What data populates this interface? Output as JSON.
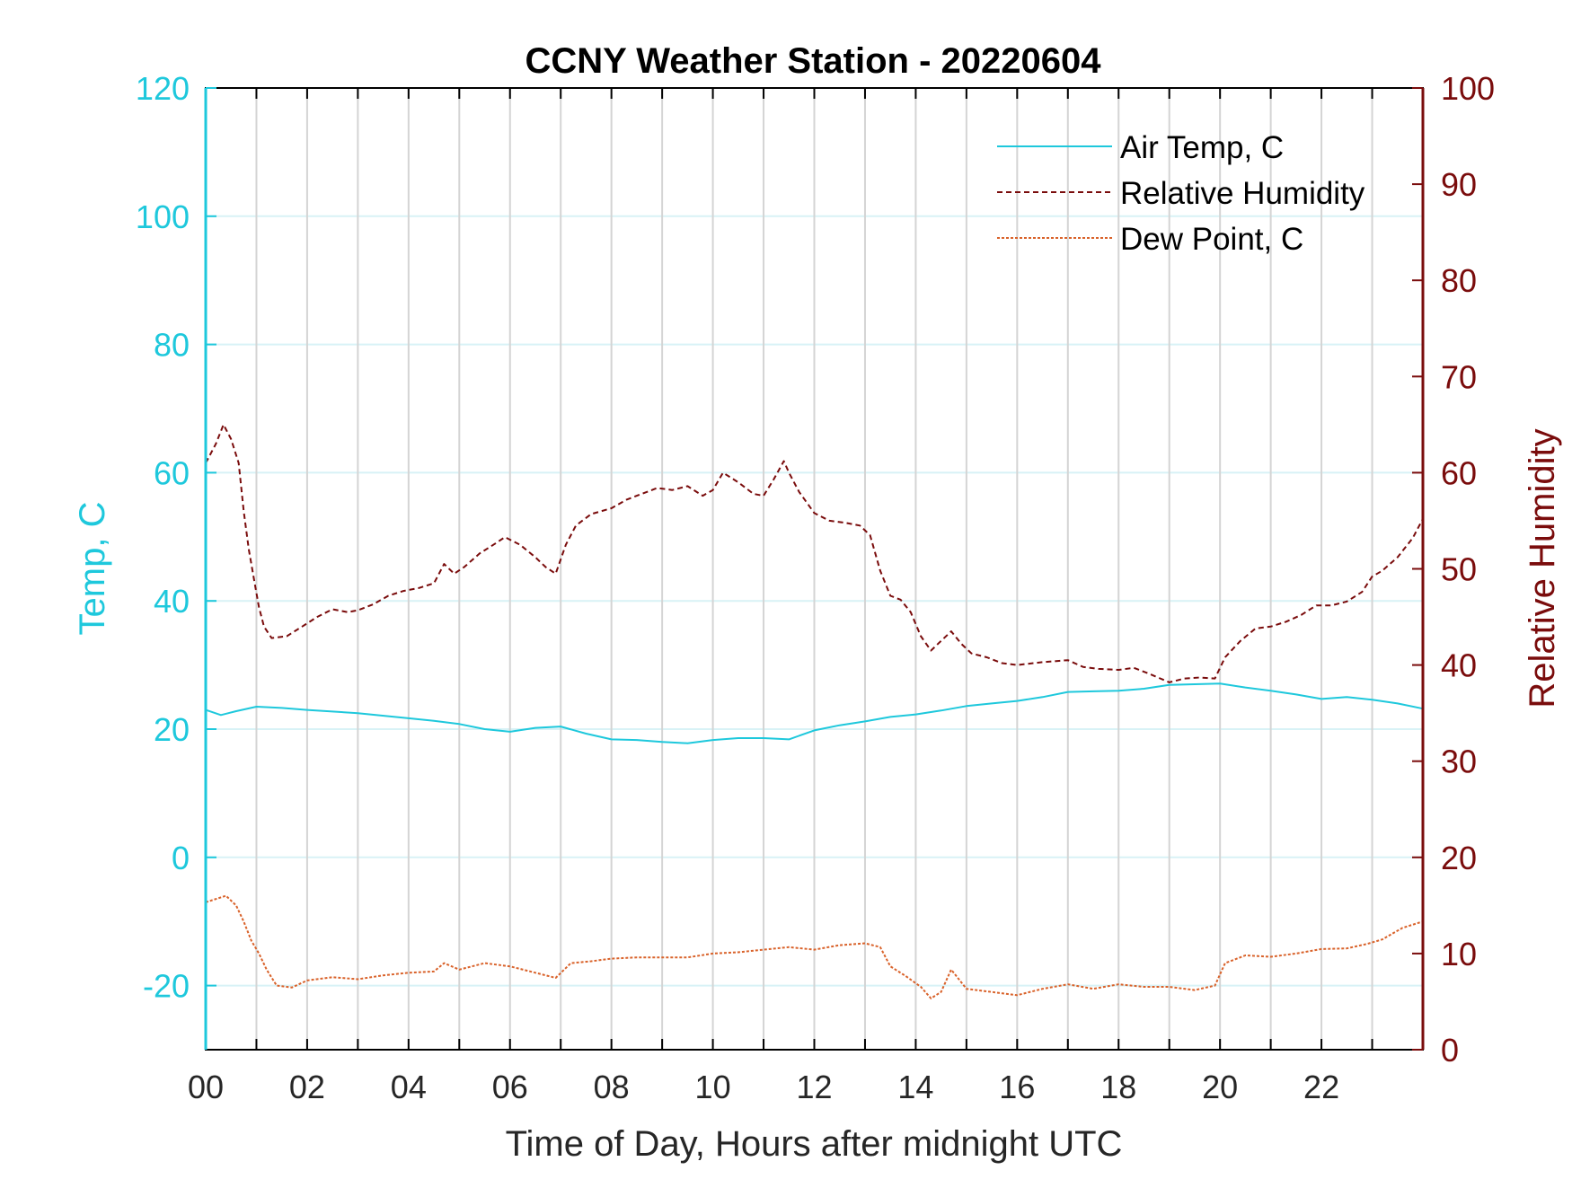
{
  "chart_data": {
    "type": "line",
    "title": "CCNY Weather Station - 20220604",
    "xlabel": "Time of Day, Hours after midnight UTC",
    "ylabel_left": "Temp, C",
    "ylabel_right": "Relative Humidity",
    "xlim": [
      0,
      24
    ],
    "ylim_left": [
      -30,
      120
    ],
    "ylim_right": [
      0,
      100
    ],
    "x_ticks": [
      0,
      2,
      4,
      6,
      8,
      10,
      12,
      14,
      16,
      18,
      20,
      22
    ],
    "x_tick_labels": [
      "00",
      "02",
      "04",
      "06",
      "08",
      "10",
      "12",
      "14",
      "16",
      "18",
      "20",
      "22"
    ],
    "y_left_ticks": [
      -20,
      0,
      20,
      40,
      60,
      80,
      100,
      120
    ],
    "y_left_tick_labels": [
      "-20",
      "0",
      "20",
      "40",
      "60",
      "80",
      "100",
      "120"
    ],
    "y_right_ticks": [
      0,
      10,
      20,
      30,
      40,
      50,
      60,
      70,
      80,
      90,
      100
    ],
    "y_right_tick_labels": [
      "0",
      "10",
      "20",
      "30",
      "40",
      "50",
      "60",
      "70",
      "80",
      "90",
      "100"
    ],
    "grid": true,
    "legend_position": "top-right",
    "colors": {
      "temp": "#1ec8dc",
      "humidity": "#7a0c0c",
      "dewpoint": "#d9622a",
      "axis_left": "#1ec8dc",
      "axis_right": "#7a0c0c",
      "grid_vertical": "#d4d4d4",
      "grid_horizontal": "#d8f2f6"
    },
    "series": [
      {
        "name": "Air Temp, C",
        "axis": "left",
        "style": "solid",
        "points": [
          [
            0,
            23
          ],
          [
            0.3,
            22.2
          ],
          [
            0.6,
            22.8
          ],
          [
            1.0,
            23.5
          ],
          [
            1.5,
            23.3
          ],
          [
            2,
            23.0
          ],
          [
            3,
            22.5
          ],
          [
            4,
            21.7
          ],
          [
            4.5,
            21.3
          ],
          [
            5,
            20.8
          ],
          [
            5.5,
            20.0
          ],
          [
            6,
            19.6
          ],
          [
            6.5,
            20.2
          ],
          [
            7,
            20.4
          ],
          [
            7.5,
            19.3
          ],
          [
            8,
            18.4
          ],
          [
            8.5,
            18.3
          ],
          [
            9,
            18.0
          ],
          [
            9.5,
            17.8
          ],
          [
            10,
            18.3
          ],
          [
            10.5,
            18.6
          ],
          [
            11,
            18.6
          ],
          [
            11.5,
            18.4
          ],
          [
            12,
            19.8
          ],
          [
            12.5,
            20.6
          ],
          [
            13,
            21.2
          ],
          [
            13.5,
            21.9
          ],
          [
            14,
            22.3
          ],
          [
            14.5,
            22.9
          ],
          [
            15,
            23.6
          ],
          [
            15.5,
            24.0
          ],
          [
            16,
            24.4
          ],
          [
            16.5,
            25.0
          ],
          [
            17,
            25.8
          ],
          [
            17.5,
            25.9
          ],
          [
            18,
            26.0
          ],
          [
            18.5,
            26.3
          ],
          [
            19,
            26.9
          ],
          [
            19.5,
            27.0
          ],
          [
            20,
            27.1
          ],
          [
            20.5,
            26.5
          ],
          [
            21,
            26.0
          ],
          [
            21.5,
            25.4
          ],
          [
            22,
            24.7
          ],
          [
            22.5,
            25.0
          ],
          [
            23,
            24.6
          ],
          [
            23.5,
            24.0
          ],
          [
            24,
            23.2
          ]
        ]
      },
      {
        "name": "Relative Humidity",
        "axis": "right",
        "style": "dashed",
        "points": [
          [
            0,
            61
          ],
          [
            0.2,
            63
          ],
          [
            0.35,
            65
          ],
          [
            0.5,
            63.5
          ],
          [
            0.65,
            61
          ],
          [
            0.75,
            56
          ],
          [
            0.85,
            52
          ],
          [
            0.95,
            49
          ],
          [
            1.05,
            46
          ],
          [
            1.15,
            44
          ],
          [
            1.3,
            42.8
          ],
          [
            1.6,
            43
          ],
          [
            1.9,
            44
          ],
          [
            2.2,
            45
          ],
          [
            2.5,
            45.8
          ],
          [
            2.8,
            45.5
          ],
          [
            3.0,
            45.7
          ],
          [
            3.3,
            46.3
          ],
          [
            3.6,
            47.2
          ],
          [
            3.9,
            47.7
          ],
          [
            4.2,
            48.0
          ],
          [
            4.5,
            48.5
          ],
          [
            4.7,
            50.5
          ],
          [
            4.9,
            49.5
          ],
          [
            5.1,
            50.2
          ],
          [
            5.4,
            51.6
          ],
          [
            5.7,
            52.6
          ],
          [
            5.9,
            53.3
          ],
          [
            6.2,
            52.5
          ],
          [
            6.5,
            51.2
          ],
          [
            6.7,
            50.2
          ],
          [
            6.9,
            49.5
          ],
          [
            7.1,
            52.5
          ],
          [
            7.3,
            54.5
          ],
          [
            7.6,
            55.7
          ],
          [
            8.0,
            56.3
          ],
          [
            8.3,
            57.2
          ],
          [
            8.6,
            57.8
          ],
          [
            8.9,
            58.4
          ],
          [
            9.2,
            58.2
          ],
          [
            9.5,
            58.6
          ],
          [
            9.8,
            57.6
          ],
          [
            10.0,
            58.2
          ],
          [
            10.2,
            60.0
          ],
          [
            10.5,
            59.0
          ],
          [
            10.8,
            57.8
          ],
          [
            11.0,
            57.6
          ],
          [
            11.2,
            59.3
          ],
          [
            11.4,
            61.2
          ],
          [
            11.5,
            60.0
          ],
          [
            11.7,
            58.0
          ],
          [
            12.0,
            55.8
          ],
          [
            12.3,
            55.0
          ],
          [
            12.6,
            54.8
          ],
          [
            12.9,
            54.5
          ],
          [
            13.1,
            53.5
          ],
          [
            13.3,
            49.8
          ],
          [
            13.5,
            47.2
          ],
          [
            13.7,
            46.8
          ],
          [
            13.9,
            45.5
          ],
          [
            14.1,
            43.0
          ],
          [
            14.3,
            41.5
          ],
          [
            14.5,
            42.5
          ],
          [
            14.7,
            43.5
          ],
          [
            14.9,
            42.2
          ],
          [
            15.1,
            41.2
          ],
          [
            15.4,
            40.8
          ],
          [
            15.7,
            40.2
          ],
          [
            16.0,
            40.0
          ],
          [
            16.5,
            40.3
          ],
          [
            17.0,
            40.5
          ],
          [
            17.3,
            39.8
          ],
          [
            17.6,
            39.6
          ],
          [
            18.0,
            39.5
          ],
          [
            18.3,
            39.7
          ],
          [
            18.6,
            39.1
          ],
          [
            19.0,
            38.2
          ],
          [
            19.3,
            38.6
          ],
          [
            19.6,
            38.7
          ],
          [
            19.9,
            38.6
          ],
          [
            20.1,
            40.8
          ],
          [
            20.4,
            42.5
          ],
          [
            20.7,
            43.8
          ],
          [
            21.0,
            44.0
          ],
          [
            21.3,
            44.5
          ],
          [
            21.6,
            45.2
          ],
          [
            21.9,
            46.2
          ],
          [
            22.2,
            46.2
          ],
          [
            22.5,
            46.6
          ],
          [
            22.8,
            47.6
          ],
          [
            23.0,
            49.2
          ],
          [
            23.2,
            49.8
          ],
          [
            23.5,
            51.2
          ],
          [
            23.8,
            53.2
          ],
          [
            24.0,
            55.2
          ]
        ]
      },
      {
        "name": "Dew Point, C",
        "axis": "left",
        "style": "dotted",
        "points": [
          [
            0,
            -7
          ],
          [
            0.2,
            -6.5
          ],
          [
            0.4,
            -6
          ],
          [
            0.6,
            -7.5
          ],
          [
            0.75,
            -10
          ],
          [
            0.9,
            -13
          ],
          [
            1.05,
            -15
          ],
          [
            1.2,
            -17.5
          ],
          [
            1.4,
            -20
          ],
          [
            1.7,
            -20.3
          ],
          [
            2.0,
            -19.2
          ],
          [
            2.5,
            -18.7
          ],
          [
            3.0,
            -19.0
          ],
          [
            3.5,
            -18.4
          ],
          [
            4.0,
            -18.0
          ],
          [
            4.5,
            -17.8
          ],
          [
            4.7,
            -16.5
          ],
          [
            5.0,
            -17.5
          ],
          [
            5.5,
            -16.5
          ],
          [
            6.0,
            -17.0
          ],
          [
            6.5,
            -18.0
          ],
          [
            6.9,
            -18.8
          ],
          [
            7.2,
            -16.5
          ],
          [
            7.6,
            -16.2
          ],
          [
            8.0,
            -15.8
          ],
          [
            8.5,
            -15.6
          ],
          [
            9.0,
            -15.6
          ],
          [
            9.5,
            -15.6
          ],
          [
            10.0,
            -15.0
          ],
          [
            10.5,
            -14.8
          ],
          [
            11.0,
            -14.4
          ],
          [
            11.5,
            -14.0
          ],
          [
            12.0,
            -14.4
          ],
          [
            12.5,
            -13.7
          ],
          [
            13.0,
            -13.4
          ],
          [
            13.3,
            -14.0
          ],
          [
            13.5,
            -17.0
          ],
          [
            13.8,
            -18.5
          ],
          [
            14.1,
            -20.2
          ],
          [
            14.3,
            -22.0
          ],
          [
            14.5,
            -21.0
          ],
          [
            14.7,
            -17.5
          ],
          [
            15.0,
            -20.5
          ],
          [
            15.5,
            -21.0
          ],
          [
            16.0,
            -21.5
          ],
          [
            16.5,
            -20.5
          ],
          [
            17.0,
            -19.8
          ],
          [
            17.5,
            -20.5
          ],
          [
            18.0,
            -19.8
          ],
          [
            18.5,
            -20.2
          ],
          [
            19.0,
            -20.2
          ],
          [
            19.5,
            -20.7
          ],
          [
            19.9,
            -20.0
          ],
          [
            20.1,
            -16.5
          ],
          [
            20.5,
            -15.3
          ],
          [
            21.0,
            -15.5
          ],
          [
            21.5,
            -15.0
          ],
          [
            22.0,
            -14.3
          ],
          [
            22.5,
            -14.2
          ],
          [
            22.9,
            -13.5
          ],
          [
            23.2,
            -12.8
          ],
          [
            23.6,
            -11.0
          ],
          [
            24.0,
            -10.0
          ]
        ]
      }
    ]
  }
}
